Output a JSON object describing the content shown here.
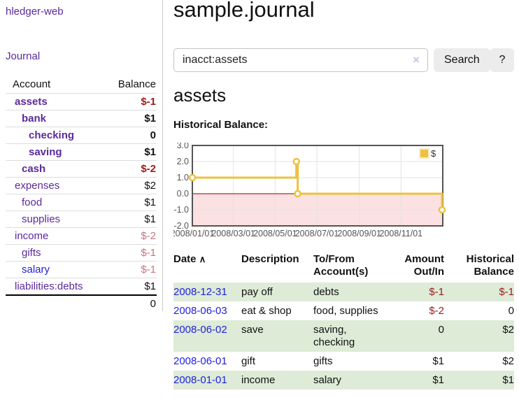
{
  "colors": {
    "link_purple": "#5b2a9b",
    "link_blue": "#2222dd",
    "negative_strong": "#9e1a1a",
    "negative_muted": "#c4767c",
    "row_green": "#ddebd7"
  },
  "sidebar": {
    "brand": "hledger-web",
    "journal_link": "Journal",
    "header": {
      "account": "Account",
      "balance": "Balance"
    },
    "accounts": [
      {
        "name": "assets",
        "balance": "$-1",
        "depth": 1,
        "bold": true,
        "neg": "strong",
        "link_color": "purple"
      },
      {
        "name": "bank",
        "balance": "$1",
        "depth": 2,
        "bold": true,
        "neg": "none",
        "link_color": "purple"
      },
      {
        "name": "checking",
        "balance": "0",
        "depth": 3,
        "bold": true,
        "neg": "none",
        "link_color": "purple"
      },
      {
        "name": "saving",
        "balance": "$1",
        "depth": 3,
        "bold": true,
        "neg": "none",
        "link_color": "purple"
      },
      {
        "name": "cash",
        "balance": "$-2",
        "depth": 2,
        "bold": true,
        "neg": "strong",
        "link_color": "purple"
      },
      {
        "name": "expenses",
        "balance": "$2",
        "depth": 1,
        "bold": false,
        "neg": "none",
        "link_color": "purple"
      },
      {
        "name": "food",
        "balance": "$1",
        "depth": 2,
        "bold": false,
        "neg": "none",
        "link_color": "purple"
      },
      {
        "name": "supplies",
        "balance": "$1",
        "depth": 2,
        "bold": false,
        "neg": "none",
        "link_color": "purple"
      },
      {
        "name": "income",
        "balance": "$-2",
        "depth": 1,
        "bold": false,
        "neg": "muted",
        "link_color": "purple"
      },
      {
        "name": "gifts",
        "balance": "$-1",
        "depth": 2,
        "bold": false,
        "neg": "muted",
        "link_color": "purple"
      },
      {
        "name": "salary",
        "balance": "$-1",
        "depth": 2,
        "bold": false,
        "neg": "muted",
        "link_color": "blue"
      },
      {
        "name": "liabilities:debts",
        "balance": "$1",
        "depth": 1,
        "bold": false,
        "neg": "none",
        "link_color": "purple"
      }
    ],
    "total": "0"
  },
  "main": {
    "title": "sample.journal",
    "search": {
      "value": "inacct:assets",
      "clear_icon": "×",
      "button": "Search",
      "help_button": "?"
    },
    "account_title": "assets",
    "chart_label": "Historical Balance:"
  },
  "chart_data": {
    "type": "line",
    "step": true,
    "title": "Historical Balance",
    "series": [
      {
        "name": "$",
        "points": [
          [
            "2008/01/01",
            1
          ],
          [
            "2008/06/01",
            2
          ],
          [
            "2008/06/03",
            0
          ],
          [
            "2008/12/31",
            -1
          ]
        ]
      }
    ],
    "ylim": [
      -2,
      3
    ],
    "yticks": [
      "3.0",
      "2.0",
      "1.0",
      "0.0",
      "-1.0",
      "-2.0"
    ],
    "xticks": [
      "2008/01/01",
      "2008/03/01",
      "2008/05/01",
      "2008/07/01",
      "2008/09/01",
      "2008/11/01"
    ],
    "xmax": "2009/01/01",
    "grid": true,
    "legend": {
      "label": "$",
      "position": "top-right"
    },
    "colors": {
      "line": "#edc240",
      "marker_fill": "#ffffff",
      "swatch_border": "#f9ecc4",
      "negative_region": "#fbe1e1",
      "zero_line": "#8b0000",
      "grid": "#e3e3e3",
      "border": "#545454",
      "tick_text": "#555555"
    }
  },
  "register": {
    "headers": {
      "date": "Date",
      "sort_icon": "∧",
      "description": "Description",
      "accounts": "To/From Account(s)",
      "amount": "Amount Out/In",
      "balance": "Historical Balance"
    },
    "rows": [
      {
        "date": "2008-12-31",
        "description": "pay off",
        "accounts": "debts",
        "amount": "$-1",
        "amount_negative": true,
        "balance": "$-1",
        "balance_negative": true
      },
      {
        "date": "2008-06-03",
        "description": "eat & shop",
        "accounts": "food, supplies",
        "amount": "$-2",
        "amount_negative": true,
        "balance": "0",
        "balance_negative": false
      },
      {
        "date": "2008-06-02",
        "description": "save",
        "accounts": "saving, checking",
        "amount": "0",
        "amount_negative": false,
        "balance": "$2",
        "balance_negative": false
      },
      {
        "date": "2008-06-01",
        "description": "gift",
        "accounts": "gifts",
        "amount": "$1",
        "amount_negative": false,
        "balance": "$2",
        "balance_negative": false
      },
      {
        "date": "2008-01-01",
        "description": "income",
        "accounts": "salary",
        "amount": "$1",
        "amount_negative": false,
        "balance": "$1",
        "balance_negative": false
      }
    ]
  }
}
